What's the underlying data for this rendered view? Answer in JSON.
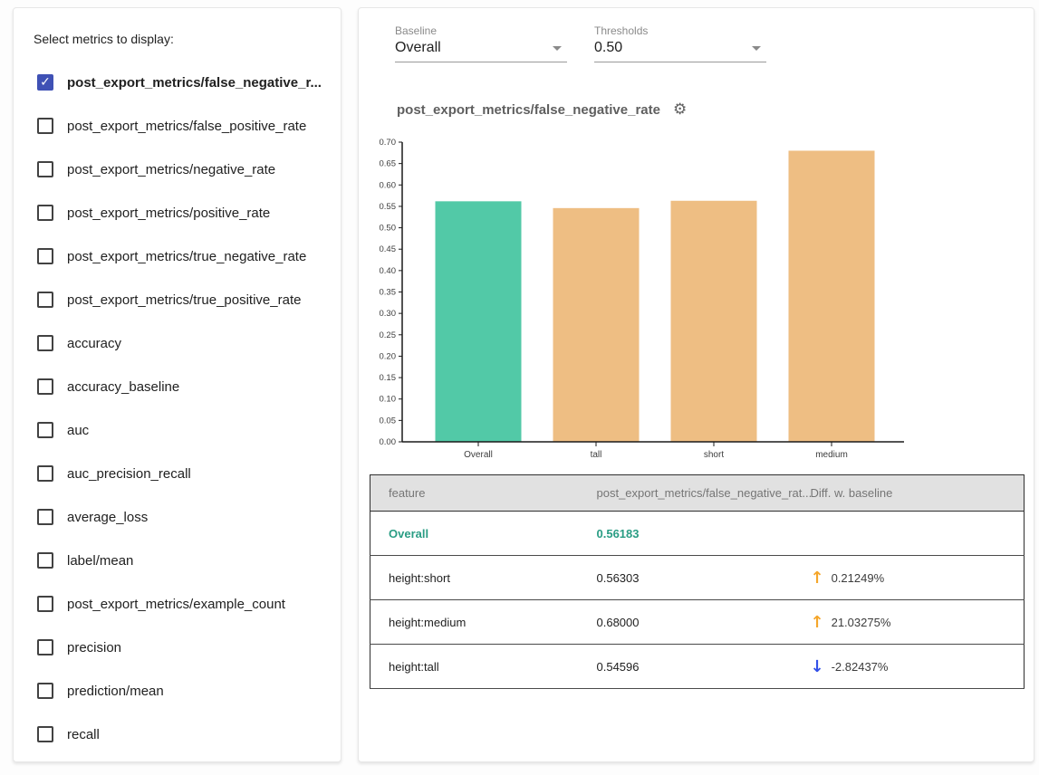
{
  "left_panel": {
    "title": "Select metrics to display:",
    "metrics": [
      {
        "label": "post_export_metrics/false_negative_r...",
        "checked": true
      },
      {
        "label": "post_export_metrics/false_positive_rate",
        "checked": false
      },
      {
        "label": "post_export_metrics/negative_rate",
        "checked": false
      },
      {
        "label": "post_export_metrics/positive_rate",
        "checked": false
      },
      {
        "label": "post_export_metrics/true_negative_rate",
        "checked": false
      },
      {
        "label": "post_export_metrics/true_positive_rate",
        "checked": false
      },
      {
        "label": "accuracy",
        "checked": false
      },
      {
        "label": "accuracy_baseline",
        "checked": false
      },
      {
        "label": "auc",
        "checked": false
      },
      {
        "label": "auc_precision_recall",
        "checked": false
      },
      {
        "label": "average_loss",
        "checked": false
      },
      {
        "label": "label/mean",
        "checked": false
      },
      {
        "label": "post_export_metrics/example_count",
        "checked": false
      },
      {
        "label": "precision",
        "checked": false
      },
      {
        "label": "prediction/mean",
        "checked": false
      },
      {
        "label": "recall",
        "checked": false
      }
    ]
  },
  "controls": {
    "baseline": {
      "label": "Baseline",
      "value": "Overall"
    },
    "thresholds": {
      "label": "Thresholds",
      "value": "0.50"
    }
  },
  "chart": {
    "title": "post_export_metrics/false_negative_rate"
  },
  "chart_data": {
    "type": "bar",
    "title": "post_export_metrics/false_negative_rate",
    "categories": [
      "Overall",
      "tall",
      "short",
      "medium"
    ],
    "values": [
      0.56183,
      0.54596,
      0.56303,
      0.68
    ],
    "xlabel": "",
    "ylabel": "",
    "ylim": [
      0,
      0.7
    ],
    "ytick_step": 0.05,
    "grid": false,
    "legend": "none",
    "bar_colors": [
      "#52C9A7",
      "#EEBE83",
      "#EEBE83",
      "#EEBE83"
    ]
  },
  "table": {
    "headers": [
      "feature",
      "post_export_metrics/false_negative_rat...",
      "Diff. w. baseline"
    ],
    "rows": [
      {
        "feature": "Overall",
        "value": "0.56183",
        "diff": "",
        "direction": "none",
        "highlight": true
      },
      {
        "feature": "height:short",
        "value": "0.56303",
        "diff": "0.21249%",
        "direction": "up",
        "highlight": false
      },
      {
        "feature": "height:medium",
        "value": "0.68000",
        "diff": "21.03275%",
        "direction": "up",
        "highlight": false
      },
      {
        "feature": "height:tall",
        "value": "0.54596",
        "diff": "-2.82437%",
        "direction": "down",
        "highlight": false
      }
    ]
  },
  "icons": {
    "check": "✓",
    "gear": "⚙",
    "up_arrow": "↑",
    "down_arrow": "↓"
  },
  "colors": {
    "checked_checkbox": "#3F51B5",
    "baseline_bar": "#52C9A7",
    "slice_bar": "#EEBE83",
    "highlight_text": "#2A9D84",
    "up_arrow": "#F5A62B",
    "down_arrow": "#3250E8",
    "axis": "#1a1a1a"
  }
}
